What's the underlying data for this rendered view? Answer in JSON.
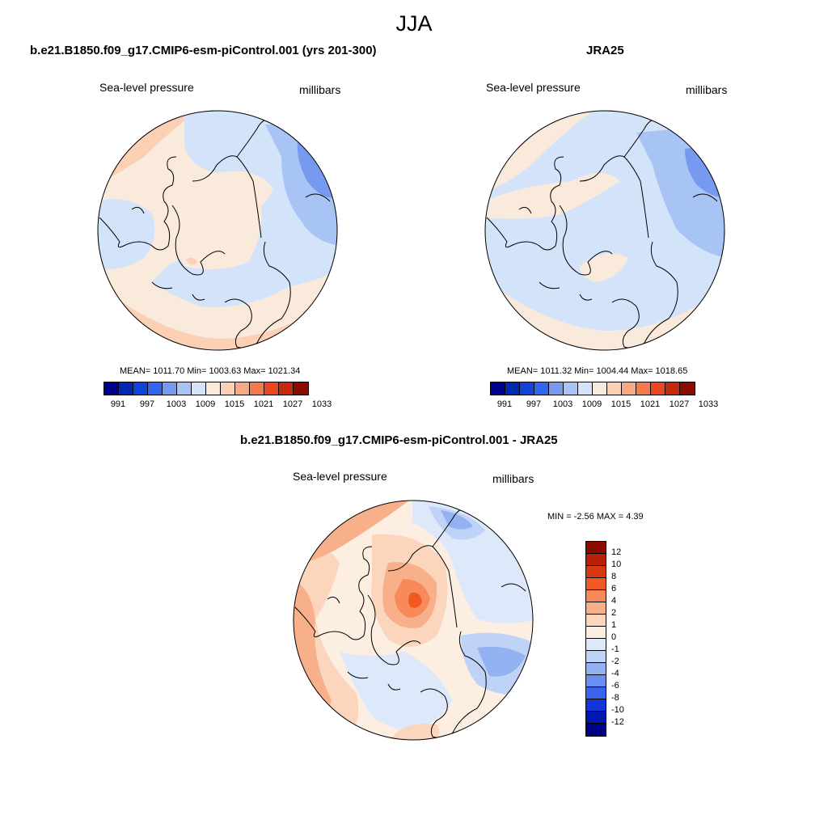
{
  "title": "JJA",
  "colorbar_colors": [
    "#000090",
    "#0028b0",
    "#1144d8",
    "#3366ee",
    "#7799f0",
    "#a8c4f5",
    "#d3e3fa",
    "#faeadb",
    "#fbd0b4",
    "#f8a883",
    "#f47a4e",
    "#e8471f",
    "#c8280c",
    "#8c0b00"
  ],
  "panel_a": {
    "title": "b.e21.B1850.f09_g17.CMIP6-esm-piControl.001 (yrs 201-300)",
    "label_left": "Sea-level pressure",
    "label_right": "millibars",
    "stats": "MEAN= 1011.70  Min= 1003.63  Max= 1021.34",
    "ticks": [
      "991",
      "997",
      "1003",
      "1009",
      "1015",
      "1021",
      "1027",
      "1033"
    ]
  },
  "panel_b": {
    "title": "JRA25",
    "label_left": "Sea-level pressure",
    "label_right": "millibars",
    "stats": "MEAN= 1011.32  Min= 1004.44  Max= 1018.65",
    "ticks": [
      "991",
      "997",
      "1003",
      "1009",
      "1015",
      "1021",
      "1027",
      "1033"
    ]
  },
  "panel_diff": {
    "title": "b.e21.B1850.f09_g17.CMIP6-esm-piControl.001 - JRA25",
    "label_left": "Sea-level pressure",
    "label_right": "millibars",
    "stats": "MIN =  -2.56 MAX =   4.39",
    "ticks": [
      "12",
      "10",
      "8",
      "6",
      "4",
      "2",
      "1",
      "0",
      "-1",
      "-2",
      "-4",
      "-6",
      "-8",
      "-10",
      "-12"
    ],
    "colors_top_to_bottom": [
      "#8c0b00",
      "#b8200a",
      "#d8380e",
      "#f05a22",
      "#f88a5a",
      "#f8b08a",
      "#fbd5bc",
      "#fdeee2",
      "#dde9fa",
      "#bfd3f6",
      "#93b2f1",
      "#6a8ff0",
      "#3a64ec",
      "#1436d8",
      "#0016b0",
      "#000085"
    ]
  }
}
